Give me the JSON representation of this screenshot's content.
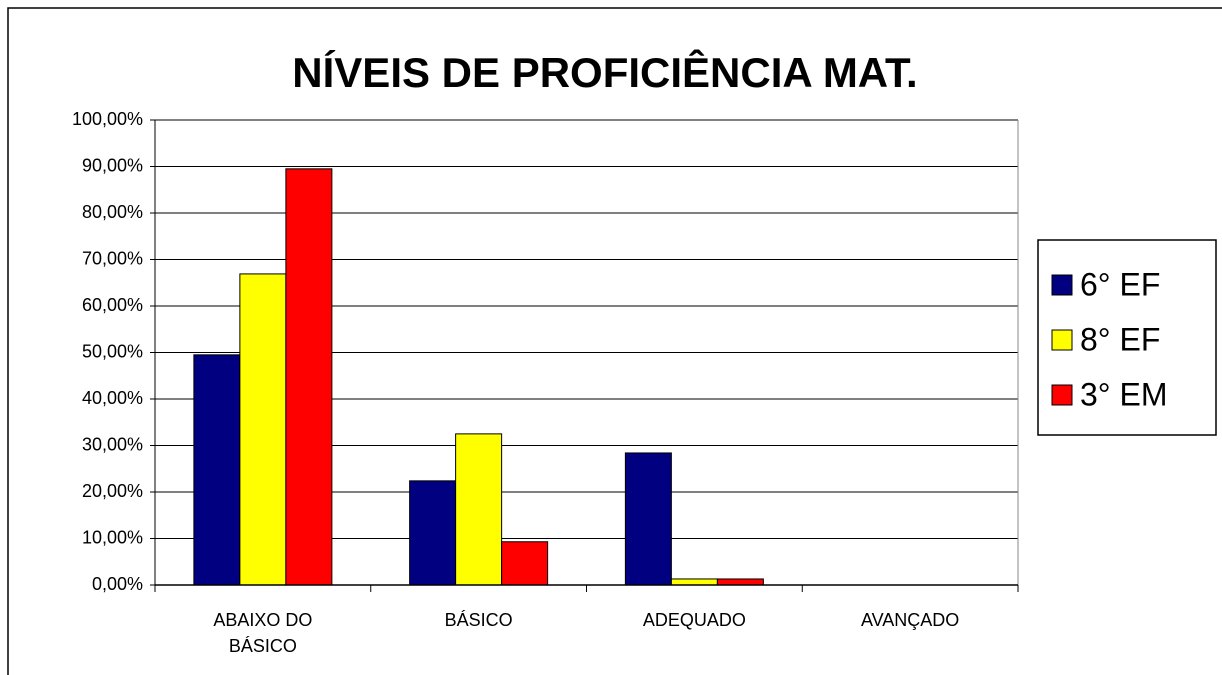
{
  "chart_data": {
    "type": "bar",
    "title": "NÍVEIS DE PROFICIÊNCIA MAT.",
    "categories": [
      "ABAIXO DO BÁSICO",
      "BÁSICO",
      "ADEQUADO",
      "AVANÇADO"
    ],
    "series": [
      {
        "name": "6° EF",
        "color": "#000080",
        "values": [
          49.5,
          22.4,
          28.4,
          0
        ]
      },
      {
        "name": "8° EF",
        "color": "#ffff00",
        "values": [
          66.9,
          32.5,
          1.3,
          0
        ]
      },
      {
        "name": "3° EM",
        "color": "#ff0000",
        "values": [
          89.5,
          9.3,
          1.3,
          0
        ]
      }
    ],
    "ylim": [
      0,
      100
    ],
    "yticks": [
      {
        "value": 0,
        "label": "0,00%"
      },
      {
        "value": 10,
        "label": "10,00%"
      },
      {
        "value": 20,
        "label": "20,00%"
      },
      {
        "value": 30,
        "label": "30,00%"
      },
      {
        "value": 40,
        "label": "40,00%"
      },
      {
        "value": 50,
        "label": "50,00%"
      },
      {
        "value": 60,
        "label": "60,00%"
      },
      {
        "value": 70,
        "label": "70,00%"
      },
      {
        "value": 80,
        "label": "80,00%"
      },
      {
        "value": 90,
        "label": "90,00%"
      },
      {
        "value": 100,
        "label": "100,00%"
      }
    ],
    "grid": true,
    "legend": "right"
  }
}
